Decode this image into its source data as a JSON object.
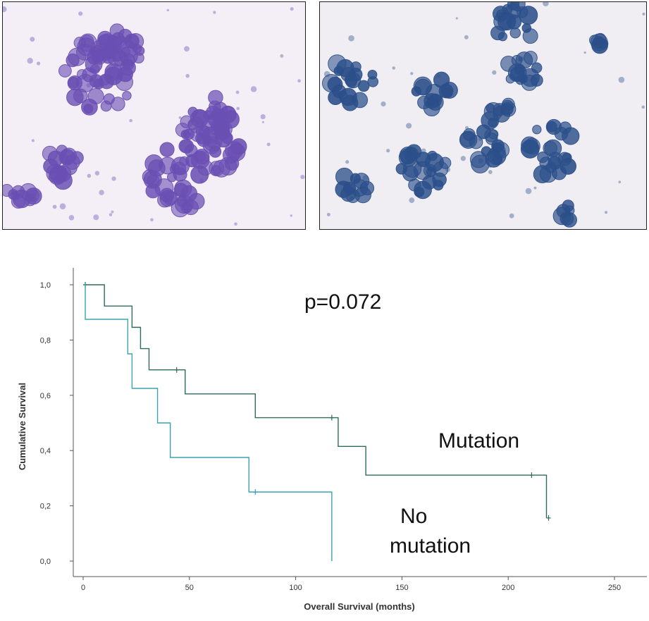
{
  "figure": {
    "panels": [
      {
        "name": "micrograph-left",
        "stain_tint": "#6a4fb3",
        "background": "#f4eef6"
      },
      {
        "name": "micrograph-right",
        "stain_tint": "#2b4f8a",
        "background": "#f1eef3"
      }
    ]
  },
  "chart_data": {
    "type": "line",
    "step": true,
    "xlabel": "Overall Survival (months)",
    "ylabel": "Cumulative Survival",
    "xlim": [
      -10,
      265
    ],
    "ylim": [
      0,
      1.0
    ],
    "x_ticks": [
      0,
      50,
      100,
      150,
      200,
      250
    ],
    "x_tick_labels": [
      "0",
      "50",
      "100",
      "150",
      "200",
      "250"
    ],
    "y_ticks": [
      0.0,
      0.2,
      0.4,
      0.6,
      0.8,
      1.0
    ],
    "y_tick_labels": [
      "0,0",
      "0,2",
      "0,4",
      "0,6",
      "0,8",
      "1,0"
    ],
    "grid": false,
    "annotation": "p=0.072",
    "series": [
      {
        "name": "Mutation",
        "color": "#2f6b5e",
        "steps": [
          [
            0,
            1.0
          ],
          [
            10,
            0.923
          ],
          [
            23,
            0.846
          ],
          [
            27,
            0.769
          ],
          [
            31,
            0.692
          ],
          [
            48,
            0.605
          ],
          [
            81,
            0.519
          ],
          [
            120,
            0.415
          ],
          [
            133,
            0.311
          ],
          [
            218,
            0.156
          ]
        ],
        "end_x": 218,
        "censored": [
          [
            1,
            1.0
          ],
          [
            44,
            0.692
          ],
          [
            117,
            0.519
          ],
          [
            211,
            0.311
          ],
          [
            219,
            0.156
          ]
        ]
      },
      {
        "name": "No mutation",
        "color": "#3aa3b0",
        "steps": [
          [
            0,
            1.0
          ],
          [
            1,
            0.875
          ],
          [
            21,
            0.75
          ],
          [
            23,
            0.625
          ],
          [
            35,
            0.5
          ],
          [
            41,
            0.375
          ],
          [
            78,
            0.25
          ],
          [
            117,
            0.0
          ]
        ],
        "end_x": 117,
        "censored": [
          [
            81,
            0.25
          ]
        ]
      }
    ],
    "labels": {
      "mutation": "Mutation",
      "no_mutation_line1": "No",
      "no_mutation_line2": "mutation"
    }
  }
}
